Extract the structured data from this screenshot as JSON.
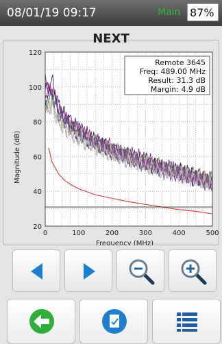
{
  "status": {
    "datetime": "08/01/19 09:17",
    "source": "Main",
    "battery": "87%"
  },
  "screen": {
    "title": "NEXT"
  },
  "result_box": {
    "remote": "Remote 3645",
    "freq": "Freq: 489.00 MHz",
    "result": "Result: 31.3 dB",
    "margin": "Margin: 4.9 dB"
  },
  "chart_data": {
    "type": "line",
    "xlabel": "Frequency (MHz)",
    "ylabel": "Magnitude (dB)",
    "xlim": [
      0,
      500
    ],
    "ylim": [
      20,
      120
    ],
    "xticks": [
      0,
      100,
      200,
      300,
      400,
      500
    ],
    "yticks": [
      20,
      40,
      60,
      80,
      100,
      120
    ],
    "grid": true,
    "limit": {
      "x": [
        10,
        20,
        40,
        60,
        80,
        100,
        150,
        200,
        250,
        300,
        350,
        400,
        450,
        500
      ],
      "y": [
        65,
        57,
        50,
        46,
        43.5,
        41.5,
        38,
        36,
        34,
        32.5,
        31,
        29.5,
        28.5,
        27
      ]
    },
    "reference_level": 31,
    "series": [
      {
        "color": "#3a2a6a",
        "y": [
          98,
          104,
          90,
          84,
          80,
          76,
          74,
          70,
          68,
          66,
          64,
          62,
          61,
          60,
          58,
          58,
          56,
          55,
          54,
          53,
          52,
          51,
          50,
          49,
          48,
          47
        ]
      },
      {
        "color": "#7a2a80",
        "y": [
          103,
          96,
          86,
          82,
          78,
          76,
          72,
          70,
          68,
          67,
          66,
          63,
          62,
          61,
          60,
          58,
          57,
          55,
          54,
          53,
          52,
          50,
          49,
          48,
          47,
          46
        ]
      },
      {
        "color": "#2a2a60",
        "y": [
          92,
          98,
          86,
          80,
          76,
          73,
          70,
          69,
          67,
          65,
          63,
          62,
          60,
          59,
          58,
          56,
          55,
          54,
          53,
          52,
          51,
          50,
          48,
          47,
          46,
          45
        ]
      },
      {
        "color": "#8fae6a",
        "y": [
          88,
          92,
          82,
          78,
          76,
          74,
          72,
          70,
          68,
          66,
          64,
          63,
          62,
          60,
          59,
          58,
          56,
          55,
          54,
          53,
          52,
          51,
          50,
          49,
          48,
          47
        ]
      },
      {
        "color": "#a9c48a",
        "y": [
          86,
          90,
          80,
          76,
          74,
          70,
          68,
          66,
          64,
          63,
          62,
          60,
          58,
          57,
          56,
          55,
          54,
          53,
          52,
          51,
          50,
          49,
          48,
          47,
          46,
          45
        ]
      },
      {
        "color": "#5a6a80",
        "y": [
          90,
          95,
          84,
          80,
          76,
          72,
          70,
          68,
          66,
          64,
          62,
          61,
          60,
          58,
          56,
          55,
          54,
          52,
          51,
          50,
          49,
          48,
          47,
          46,
          45,
          44
        ]
      },
      {
        "color": "#9a3a8a",
        "y": [
          96,
          100,
          88,
          82,
          78,
          75,
          73,
          70,
          67,
          66,
          64,
          62,
          61,
          59,
          58,
          56,
          55,
          54,
          53,
          52,
          50,
          49,
          48,
          47,
          46,
          45
        ]
      },
      {
        "color": "#c8a8c8",
        "y": [
          85,
          88,
          80,
          75,
          72,
          70,
          68,
          66,
          64,
          62,
          61,
          60,
          58,
          57,
          56,
          55,
          53,
          52,
          51,
          50,
          49,
          48,
          47,
          46,
          45,
          44
        ]
      }
    ]
  },
  "buttons": {
    "prev": "left-triangle-icon",
    "next": "right-triangle-icon",
    "zoom_out": "zoom-out-icon",
    "zoom_in": "zoom-in-icon",
    "back": "back-arrow-icon",
    "report": "document-check-icon",
    "list": "list-icon"
  },
  "colors": {
    "accent": "#1e7fd0",
    "back_green": "#2fae3a",
    "limit_line": "#d24a4a"
  }
}
